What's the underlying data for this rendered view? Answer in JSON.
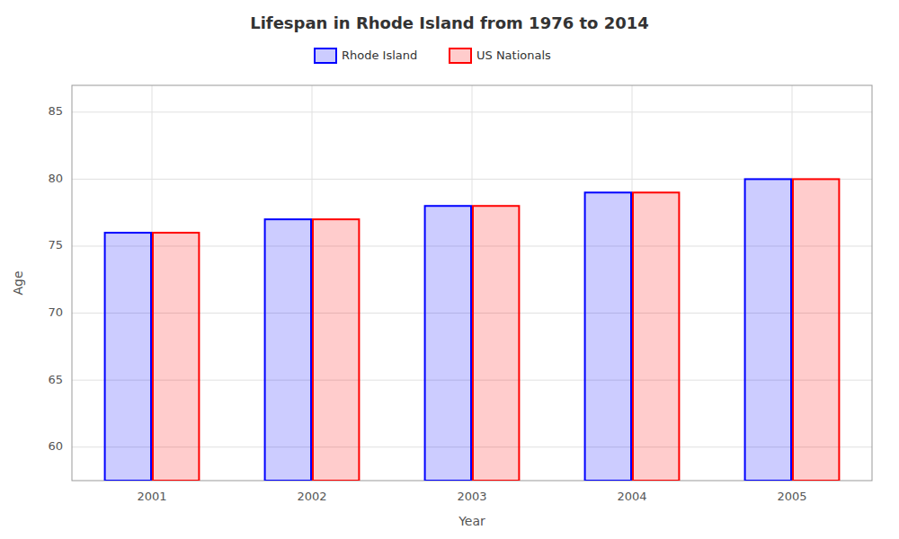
{
  "chart_data": {
    "type": "bar",
    "title": "Lifespan in Rhode Island from 1976 to 2014",
    "x_label": "Year",
    "y_label": "Age",
    "categories": [
      "2001",
      "2002",
      "2003",
      "2004",
      "2005"
    ],
    "series": [
      {
        "name": "Rhode Island",
        "color": "#0000ff",
        "values": [
          76,
          77,
          78,
          79,
          80
        ]
      },
      {
        "name": "US Nationals",
        "color": "#ff0000",
        "values": [
          76,
          77,
          78,
          79,
          80
        ]
      }
    ],
    "ylim": [
      57.5,
      87
    ],
    "yticks": [
      60,
      65,
      70,
      75,
      80,
      85
    ],
    "grid": true,
    "legend": "top"
  }
}
